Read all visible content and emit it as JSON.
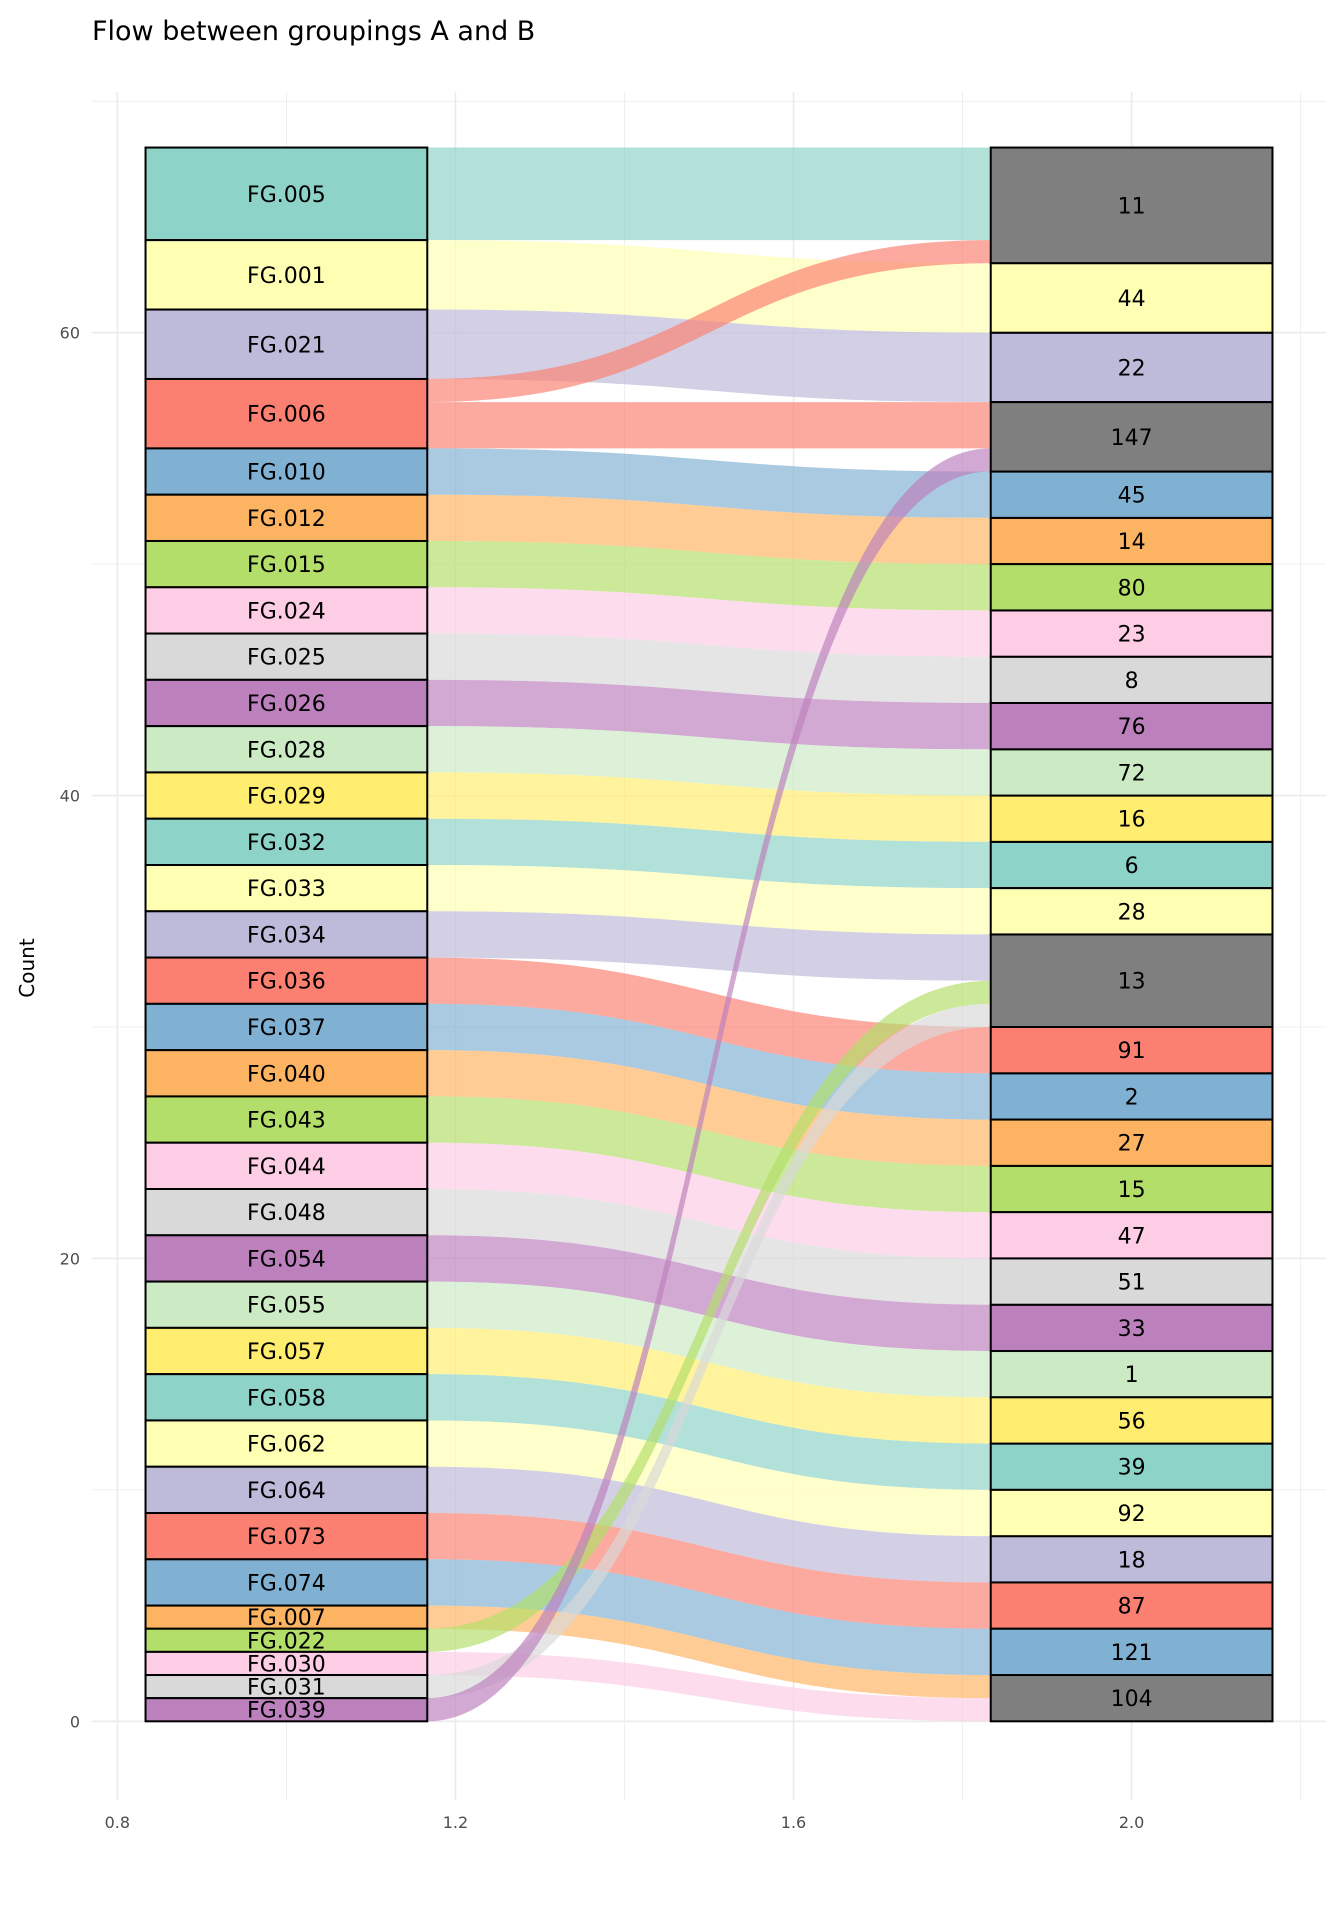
{
  "chart_data": {
    "type": "alluvial",
    "title": "Flow between groupings A and B",
    "xlabel": "",
    "ylabel": "Count",
    "xlim": [
      0.77,
      2.23
    ],
    "ylim": [
      -3.4,
      70.4
    ],
    "x_ticks": [
      0.8,
      1.2,
      1.6,
      2.0
    ],
    "y_ticks": [
      0,
      20,
      40,
      60
    ],
    "grid": true,
    "axis_x_positions": [
      1,
      2
    ],
    "mixed_color": "#7F7F7F",
    "left_strata": [
      {
        "label": "FG.005",
        "count": 4,
        "color": "#8DD3C7"
      },
      {
        "label": "FG.001",
        "count": 3,
        "color": "#FFFFB3"
      },
      {
        "label": "FG.021",
        "count": 3,
        "color": "#BEBADA"
      },
      {
        "label": "FG.006",
        "count": 3,
        "color": "#FB8072"
      },
      {
        "label": "FG.010",
        "count": 2,
        "color": "#80B1D3"
      },
      {
        "label": "FG.012",
        "count": 2,
        "color": "#FDB462"
      },
      {
        "label": "FG.015",
        "count": 2,
        "color": "#B3DE69"
      },
      {
        "label": "FG.024",
        "count": 2,
        "color": "#FCCDE5"
      },
      {
        "label": "FG.025",
        "count": 2,
        "color": "#D9D9D9"
      },
      {
        "label": "FG.026",
        "count": 2,
        "color": "#BC80BD"
      },
      {
        "label": "FG.028",
        "count": 2,
        "color": "#CCEBC5"
      },
      {
        "label": "FG.029",
        "count": 2,
        "color": "#FFED6F"
      },
      {
        "label": "FG.032",
        "count": 2,
        "color": "#8DD3C7"
      },
      {
        "label": "FG.033",
        "count": 2,
        "color": "#FFFFB3"
      },
      {
        "label": "FG.034",
        "count": 2,
        "color": "#BEBADA"
      },
      {
        "label": "FG.036",
        "count": 2,
        "color": "#FB8072"
      },
      {
        "label": "FG.037",
        "count": 2,
        "color": "#80B1D3"
      },
      {
        "label": "FG.040",
        "count": 2,
        "color": "#FDB462"
      },
      {
        "label": "FG.043",
        "count": 2,
        "color": "#B3DE69"
      },
      {
        "label": "FG.044",
        "count": 2,
        "color": "#FCCDE5"
      },
      {
        "label": "FG.048",
        "count": 2,
        "color": "#D9D9D9"
      },
      {
        "label": "FG.054",
        "count": 2,
        "color": "#BC80BD"
      },
      {
        "label": "FG.055",
        "count": 2,
        "color": "#CCEBC5"
      },
      {
        "label": "FG.057",
        "count": 2,
        "color": "#FFED6F"
      },
      {
        "label": "FG.058",
        "count": 2,
        "color": "#8DD3C7"
      },
      {
        "label": "FG.062",
        "count": 2,
        "color": "#FFFFB3"
      },
      {
        "label": "FG.064",
        "count": 2,
        "color": "#BEBADA"
      },
      {
        "label": "FG.073",
        "count": 2,
        "color": "#FB8072"
      },
      {
        "label": "FG.074",
        "count": 2,
        "color": "#80B1D3"
      },
      {
        "label": "FG.007",
        "count": 1,
        "color": "#FDB462"
      },
      {
        "label": "FG.022",
        "count": 1,
        "color": "#B3DE69"
      },
      {
        "label": "FG.030",
        "count": 1,
        "color": "#FCCDE5"
      },
      {
        "label": "FG.031",
        "count": 1,
        "color": "#D9D9D9"
      },
      {
        "label": "FG.039",
        "count": 1,
        "color": "#BC80BD"
      }
    ],
    "right_strata": [
      {
        "label": "11",
        "count": 5,
        "color": "#7F7F7F"
      },
      {
        "label": "44",
        "count": 3,
        "color": "#FFFFB3"
      },
      {
        "label": "22",
        "count": 3,
        "color": "#BEBADA"
      },
      {
        "label": "147",
        "count": 3,
        "color": "#7F7F7F"
      },
      {
        "label": "45",
        "count": 2,
        "color": "#80B1D3"
      },
      {
        "label": "14",
        "count": 2,
        "color": "#FDB462"
      },
      {
        "label": "80",
        "count": 2,
        "color": "#B3DE69"
      },
      {
        "label": "23",
        "count": 2,
        "color": "#FCCDE5"
      },
      {
        "label": "8",
        "count": 2,
        "color": "#D9D9D9"
      },
      {
        "label": "76",
        "count": 2,
        "color": "#BC80BD"
      },
      {
        "label": "72",
        "count": 2,
        "color": "#CCEBC5"
      },
      {
        "label": "16",
        "count": 2,
        "color": "#FFED6F"
      },
      {
        "label": "6",
        "count": 2,
        "color": "#8DD3C7"
      },
      {
        "label": "28",
        "count": 2,
        "color": "#FFFFB3"
      },
      {
        "label": "13",
        "count": 4,
        "color": "#7F7F7F"
      },
      {
        "label": "91",
        "count": 2,
        "color": "#FB8072"
      },
      {
        "label": "2",
        "count": 2,
        "color": "#80B1D3"
      },
      {
        "label": "27",
        "count": 2,
        "color": "#FDB462"
      },
      {
        "label": "15",
        "count": 2,
        "color": "#B3DE69"
      },
      {
        "label": "47",
        "count": 2,
        "color": "#FCCDE5"
      },
      {
        "label": "51",
        "count": 2,
        "color": "#D9D9D9"
      },
      {
        "label": "33",
        "count": 2,
        "color": "#BC80BD"
      },
      {
        "label": "1",
        "count": 2,
        "color": "#CCEBC5"
      },
      {
        "label": "56",
        "count": 2,
        "color": "#FFED6F"
      },
      {
        "label": "39",
        "count": 2,
        "color": "#8DD3C7"
      },
      {
        "label": "92",
        "count": 2,
        "color": "#FFFFB3"
      },
      {
        "label": "18",
        "count": 2,
        "color": "#BEBADA"
      },
      {
        "label": "87",
        "count": 2,
        "color": "#FB8072"
      },
      {
        "label": "121",
        "count": 2,
        "color": "#80B1D3"
      },
      {
        "label": "104",
        "count": 2,
        "color": "#7F7F7F"
      }
    ],
    "flows": [
      {
        "from": "FG.005",
        "to": "11",
        "count": 4
      },
      {
        "from": "FG.001",
        "to": "44",
        "count": 3
      },
      {
        "from": "FG.021",
        "to": "22",
        "count": 3
      },
      {
        "from": "FG.006",
        "to": "11",
        "count": 1
      },
      {
        "from": "FG.006",
        "to": "147",
        "count": 2
      },
      {
        "from": "FG.010",
        "to": "45",
        "count": 2
      },
      {
        "from": "FG.012",
        "to": "14",
        "count": 2
      },
      {
        "from": "FG.015",
        "to": "80",
        "count": 2
      },
      {
        "from": "FG.024",
        "to": "23",
        "count": 2
      },
      {
        "from": "FG.025",
        "to": "8",
        "count": 2
      },
      {
        "from": "FG.026",
        "to": "76",
        "count": 2
      },
      {
        "from": "FG.028",
        "to": "72",
        "count": 2
      },
      {
        "from": "FG.029",
        "to": "16",
        "count": 2
      },
      {
        "from": "FG.032",
        "to": "6",
        "count": 2
      },
      {
        "from": "FG.033",
        "to": "28",
        "count": 2
      },
      {
        "from": "FG.034",
        "to": "13",
        "count": 2
      },
      {
        "from": "FG.036",
        "to": "91",
        "count": 2
      },
      {
        "from": "FG.037",
        "to": "2",
        "count": 2
      },
      {
        "from": "FG.040",
        "to": "27",
        "count": 2
      },
      {
        "from": "FG.043",
        "to": "15",
        "count": 2
      },
      {
        "from": "FG.044",
        "to": "47",
        "count": 2
      },
      {
        "from": "FG.048",
        "to": "51",
        "count": 2
      },
      {
        "from": "FG.054",
        "to": "33",
        "count": 2
      },
      {
        "from": "FG.055",
        "to": "1",
        "count": 2
      },
      {
        "from": "FG.057",
        "to": "56",
        "count": 2
      },
      {
        "from": "FG.058",
        "to": "39",
        "count": 2
      },
      {
        "from": "FG.062",
        "to": "92",
        "count": 2
      },
      {
        "from": "FG.064",
        "to": "18",
        "count": 2
      },
      {
        "from": "FG.073",
        "to": "87",
        "count": 2
      },
      {
        "from": "FG.074",
        "to": "121",
        "count": 2
      },
      {
        "from": "FG.007",
        "to": "104",
        "count": 1
      },
      {
        "from": "FG.022",
        "to": "13",
        "count": 1
      },
      {
        "from": "FG.030",
        "to": "104",
        "count": 1
      },
      {
        "from": "FG.031",
        "to": "13",
        "count": 1
      },
      {
        "from": "FG.039",
        "to": "147",
        "count": 1
      }
    ]
  }
}
